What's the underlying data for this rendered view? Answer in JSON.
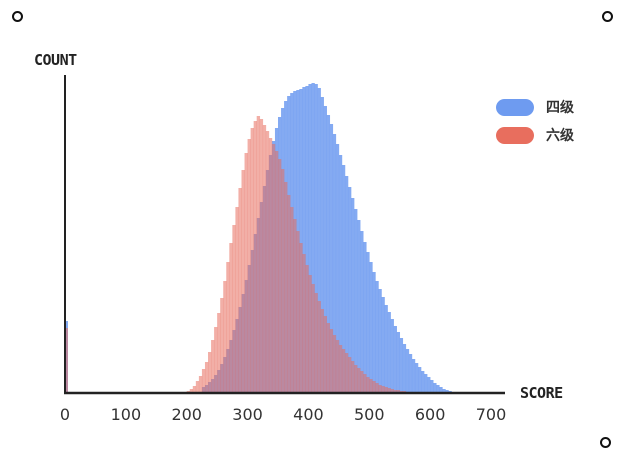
{
  "chart_data": {
    "type": "bar",
    "xlabel": "SCORE",
    "ylabel": "COUNT",
    "xlim": [
      0,
      700
    ],
    "xticks": [
      0,
      100,
      200,
      300,
      400,
      500,
      600,
      700
    ],
    "y_tick_labels": "none",
    "bin_width": 5,
    "legend_position": "top-right",
    "grid": false,
    "series": [
      {
        "name": "四级",
        "color": "#6e9bf0",
        "x": [
          0,
          225,
          230,
          235,
          240,
          245,
          250,
          255,
          260,
          265,
          270,
          275,
          280,
          285,
          290,
          295,
          300,
          305,
          310,
          315,
          320,
          325,
          330,
          335,
          340,
          345,
          350,
          355,
          360,
          365,
          370,
          375,
          380,
          385,
          390,
          395,
          400,
          405,
          410,
          415,
          420,
          425,
          430,
          435,
          440,
          445,
          450,
          455,
          460,
          465,
          470,
          475,
          480,
          485,
          490,
          495,
          500,
          505,
          510,
          515,
          520,
          525,
          530,
          535,
          540,
          545,
          550,
          555,
          560,
          565,
          570,
          575,
          580,
          585,
          590,
          595,
          600,
          605,
          610,
          615,
          620,
          625,
          630,
          635,
          640,
          645,
          650,
          655,
          660
        ],
        "values": [
          72,
          6,
          8,
          11,
          14,
          18,
          23,
          29,
          36,
          44,
          53,
          63,
          74,
          86,
          99,
          113,
          128,
          143,
          159,
          175,
          191,
          207,
          223,
          238,
          252,
          265,
          276,
          285,
          292,
          297,
          300,
          302,
          303,
          304,
          306,
          307,
          309,
          310,
          309,
          305,
          296,
          287,
          278,
          269,
          259,
          249,
          238,
          228,
          217,
          206,
          195,
          184,
          173,
          162,
          151,
          141,
          131,
          121,
          112,
          104,
          96,
          88,
          81,
          74,
          67,
          61,
          55,
          49,
          44,
          39,
          34,
          30,
          26,
          22,
          19,
          16,
          13,
          10,
          8,
          6,
          4,
          3,
          2,
          1,
          1,
          0,
          0,
          0,
          0
        ]
      },
      {
        "name": "六级",
        "color": "#e86e5e",
        "x": [
          0,
          200,
          205,
          210,
          215,
          220,
          225,
          230,
          235,
          240,
          245,
          250,
          255,
          260,
          265,
          270,
          275,
          280,
          285,
          290,
          295,
          300,
          305,
          310,
          315,
          320,
          325,
          330,
          335,
          340,
          345,
          350,
          355,
          360,
          365,
          370,
          375,
          380,
          385,
          390,
          395,
          400,
          405,
          410,
          415,
          420,
          425,
          430,
          435,
          440,
          445,
          450,
          455,
          460,
          465,
          470,
          475,
          480,
          485,
          490,
          495,
          500,
          505,
          510,
          515,
          520,
          525,
          530,
          535,
          540,
          545,
          550,
          555,
          560,
          565,
          570,
          575,
          580,
          585,
          590,
          595,
          600,
          605,
          610,
          615,
          620,
          625,
          630,
          635,
          640,
          645,
          650
        ],
        "values": [
          65,
          2,
          4,
          7,
          12,
          17,
          24,
          31,
          41,
          53,
          66,
          80,
          95,
          112,
          131,
          150,
          168,
          186,
          205,
          223,
          240,
          254,
          265,
          272,
          277,
          274,
          268,
          262,
          255,
          249,
          242,
          234,
          224,
          211,
          198,
          186,
          174,
          162,
          150,
          139,
          128,
          118,
          109,
          100,
          92,
          84,
          77,
          70,
          64,
          58,
          53,
          48,
          44,
          40,
          36,
          32,
          28,
          25,
          22,
          19,
          16,
          14,
          12,
          10,
          8,
          7,
          6,
          5,
          4,
          3,
          3,
          2,
          2,
          1,
          1,
          1,
          0,
          0,
          0,
          0,
          0,
          0,
          0,
          0,
          0,
          0,
          0,
          0,
          0,
          0,
          0,
          0
        ]
      }
    ]
  }
}
